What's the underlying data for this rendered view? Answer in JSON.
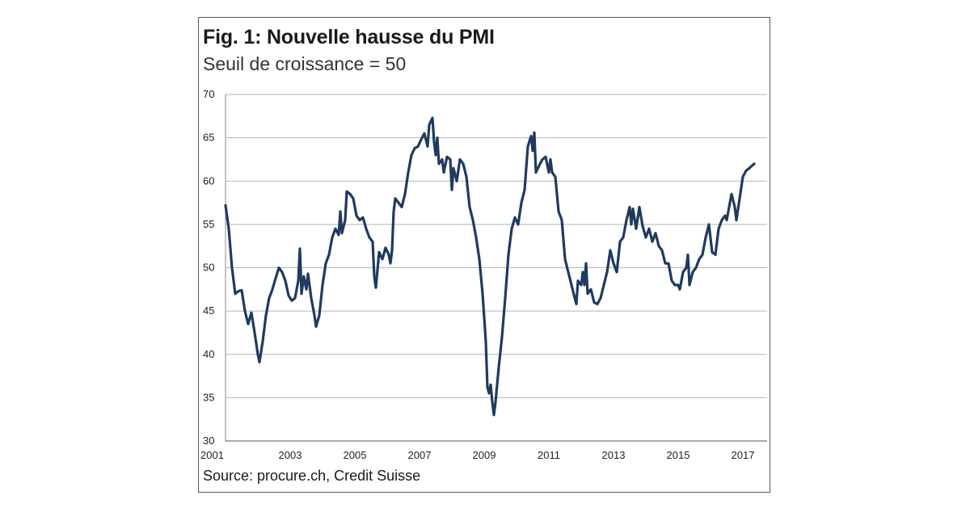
{
  "chart_data": {
    "type": "line",
    "title": "Fig. 1: Nouvelle hausse du PMI",
    "subtitle": "Seuil de croissance = 50",
    "source": "Source: procure.ch, Credit Suisse",
    "xlabel": "",
    "ylabel": "",
    "xlim": [
      2001,
      2017.75
    ],
    "ylim": [
      30,
      70
    ],
    "y_ticks": [
      "30",
      "35",
      "40",
      "45",
      "50",
      "55",
      "60",
      "65",
      "70"
    ],
    "x_ticks": [
      "2001",
      "2003",
      "2005",
      "2007",
      "2009",
      "2011",
      "2013",
      "2015",
      "2017"
    ],
    "grid": "horizontal",
    "series_color": "#1f3a5f",
    "series": [
      {
        "points": [
          [
            2001.0,
            57.2
          ],
          [
            2001.1,
            54.5
          ],
          [
            2001.2,
            50.0
          ],
          [
            2001.3,
            47.0
          ],
          [
            2001.4,
            47.3
          ],
          [
            2001.5,
            47.4
          ],
          [
            2001.6,
            45.0
          ],
          [
            2001.7,
            43.5
          ],
          [
            2001.8,
            44.8
          ],
          [
            2001.9,
            42.5
          ],
          [
            2002.0,
            40.0
          ],
          [
            2002.05,
            39.1
          ],
          [
            2002.15,
            41.5
          ],
          [
            2002.25,
            44.5
          ],
          [
            2002.35,
            46.5
          ],
          [
            2002.45,
            47.5
          ],
          [
            2002.55,
            48.8
          ],
          [
            2002.65,
            50.0
          ],
          [
            2002.75,
            49.5
          ],
          [
            2002.85,
            48.5
          ],
          [
            2002.95,
            46.8
          ],
          [
            2003.05,
            46.2
          ],
          [
            2003.15,
            46.5
          ],
          [
            2003.25,
            48.5
          ],
          [
            2003.3,
            52.2
          ],
          [
            2003.35,
            47.0
          ],
          [
            2003.42,
            49.0
          ],
          [
            2003.5,
            47.5
          ],
          [
            2003.55,
            49.3
          ],
          [
            2003.65,
            46.5
          ],
          [
            2003.75,
            44.5
          ],
          [
            2003.8,
            43.2
          ],
          [
            2003.9,
            44.5
          ],
          [
            2004.0,
            48.0
          ],
          [
            2004.1,
            50.5
          ],
          [
            2004.2,
            51.5
          ],
          [
            2004.3,
            53.5
          ],
          [
            2004.4,
            54.5
          ],
          [
            2004.5,
            53.8
          ],
          [
            2004.55,
            56.5
          ],
          [
            2004.6,
            54.0
          ],
          [
            2004.7,
            55.5
          ],
          [
            2004.75,
            58.8
          ],
          [
            2004.85,
            58.5
          ],
          [
            2004.95,
            58.0
          ],
          [
            2005.05,
            56.0
          ],
          [
            2005.15,
            55.5
          ],
          [
            2005.25,
            55.8
          ],
          [
            2005.35,
            54.5
          ],
          [
            2005.45,
            53.5
          ],
          [
            2005.55,
            53.0
          ],
          [
            2005.6,
            49.0
          ],
          [
            2005.65,
            47.7
          ],
          [
            2005.75,
            51.8
          ],
          [
            2005.85,
            51.0
          ],
          [
            2005.95,
            52.3
          ],
          [
            2006.05,
            51.5
          ],
          [
            2006.1,
            50.5
          ],
          [
            2006.15,
            52.0
          ],
          [
            2006.2,
            56.5
          ],
          [
            2006.25,
            58.0
          ],
          [
            2006.35,
            57.5
          ],
          [
            2006.45,
            57.0
          ],
          [
            2006.55,
            58.5
          ],
          [
            2006.65,
            61.0
          ],
          [
            2006.75,
            63.0
          ],
          [
            2006.85,
            63.8
          ],
          [
            2006.95,
            64.0
          ],
          [
            2007.05,
            64.8
          ],
          [
            2007.15,
            65.5
          ],
          [
            2007.25,
            64.0
          ],
          [
            2007.3,
            66.5
          ],
          [
            2007.4,
            67.3
          ],
          [
            2007.45,
            64.5
          ],
          [
            2007.5,
            63.0
          ],
          [
            2007.55,
            65.0
          ],
          [
            2007.6,
            62.0
          ],
          [
            2007.7,
            62.5
          ],
          [
            2007.75,
            61.0
          ],
          [
            2007.85,
            62.8
          ],
          [
            2007.95,
            62.5
          ],
          [
            2008.0,
            59.0
          ],
          [
            2008.05,
            61.5
          ],
          [
            2008.15,
            60.0
          ],
          [
            2008.25,
            62.5
          ],
          [
            2008.35,
            62.0
          ],
          [
            2008.45,
            60.5
          ],
          [
            2008.55,
            57.0
          ],
          [
            2008.65,
            55.5
          ],
          [
            2008.75,
            53.5
          ],
          [
            2008.85,
            51.0
          ],
          [
            2008.95,
            47.0
          ],
          [
            2009.05,
            41.5
          ],
          [
            2009.1,
            36.2
          ],
          [
            2009.15,
            35.5
          ],
          [
            2009.2,
            36.5
          ],
          [
            2009.25,
            34.5
          ],
          [
            2009.3,
            33.0
          ],
          [
            2009.35,
            34.5
          ],
          [
            2009.45,
            38.5
          ],
          [
            2009.55,
            42.0
          ],
          [
            2009.65,
            46.5
          ],
          [
            2009.75,
            51.5
          ],
          [
            2009.85,
            54.5
          ],
          [
            2009.95,
            55.8
          ],
          [
            2010.05,
            55.0
          ],
          [
            2010.15,
            57.5
          ],
          [
            2010.25,
            59.0
          ],
          [
            2010.35,
            64.0
          ],
          [
            2010.45,
            65.2
          ],
          [
            2010.5,
            63.5
          ],
          [
            2010.55,
            65.6
          ],
          [
            2010.6,
            61.0
          ],
          [
            2010.7,
            61.8
          ],
          [
            2010.8,
            62.5
          ],
          [
            2010.9,
            62.8
          ],
          [
            2011.0,
            61.0
          ],
          [
            2011.05,
            62.5
          ],
          [
            2011.1,
            61.0
          ],
          [
            2011.2,
            60.5
          ],
          [
            2011.3,
            56.5
          ],
          [
            2011.4,
            55.5
          ],
          [
            2011.5,
            51.0
          ],
          [
            2011.6,
            49.5
          ],
          [
            2011.7,
            48.0
          ],
          [
            2011.8,
            46.5
          ],
          [
            2011.85,
            45.8
          ],
          [
            2011.9,
            48.5
          ],
          [
            2012.0,
            48.0
          ],
          [
            2012.05,
            49.5
          ],
          [
            2012.1,
            48.0
          ],
          [
            2012.15,
            50.5
          ],
          [
            2012.2,
            47.0
          ],
          [
            2012.3,
            47.5
          ],
          [
            2012.4,
            46.0
          ],
          [
            2012.5,
            45.8
          ],
          [
            2012.6,
            46.5
          ],
          [
            2012.7,
            48.0
          ],
          [
            2012.8,
            49.5
          ],
          [
            2012.9,
            52.0
          ],
          [
            2013.0,
            50.5
          ],
          [
            2013.1,
            49.5
          ],
          [
            2013.2,
            53.0
          ],
          [
            2013.3,
            53.5
          ],
          [
            2013.4,
            55.5
          ],
          [
            2013.5,
            57.0
          ],
          [
            2013.55,
            55.0
          ],
          [
            2013.6,
            56.8
          ],
          [
            2013.7,
            54.5
          ],
          [
            2013.8,
            57.0
          ],
          [
            2013.9,
            54.8
          ],
          [
            2014.0,
            53.5
          ],
          [
            2014.1,
            54.5
          ],
          [
            2014.2,
            53.0
          ],
          [
            2014.3,
            54.0
          ],
          [
            2014.4,
            52.5
          ],
          [
            2014.5,
            52.0
          ],
          [
            2014.6,
            50.5
          ],
          [
            2014.7,
            50.5
          ],
          [
            2014.8,
            48.5
          ],
          [
            2014.9,
            48.0
          ],
          [
            2015.0,
            48.0
          ],
          [
            2015.05,
            47.5
          ],
          [
            2015.15,
            49.5
          ],
          [
            2015.25,
            50.0
          ],
          [
            2015.3,
            51.5
          ],
          [
            2015.35,
            48.0
          ],
          [
            2015.45,
            49.5
          ],
          [
            2015.55,
            50.0
          ],
          [
            2015.65,
            51.0
          ],
          [
            2015.75,
            51.5
          ],
          [
            2015.85,
            53.5
          ],
          [
            2015.95,
            55.0
          ],
          [
            2016.05,
            51.8
          ],
          [
            2016.15,
            51.5
          ],
          [
            2016.25,
            54.5
          ],
          [
            2016.35,
            55.5
          ],
          [
            2016.45,
            56.0
          ],
          [
            2016.5,
            55.5
          ],
          [
            2016.6,
            57.5
          ],
          [
            2016.65,
            58.5
          ],
          [
            2016.75,
            57.0
          ],
          [
            2016.8,
            55.5
          ],
          [
            2016.9,
            58.0
          ],
          [
            2017.0,
            60.5
          ],
          [
            2017.1,
            61.2
          ],
          [
            2017.2,
            61.5
          ],
          [
            2017.35,
            62.0
          ]
        ]
      }
    ]
  }
}
